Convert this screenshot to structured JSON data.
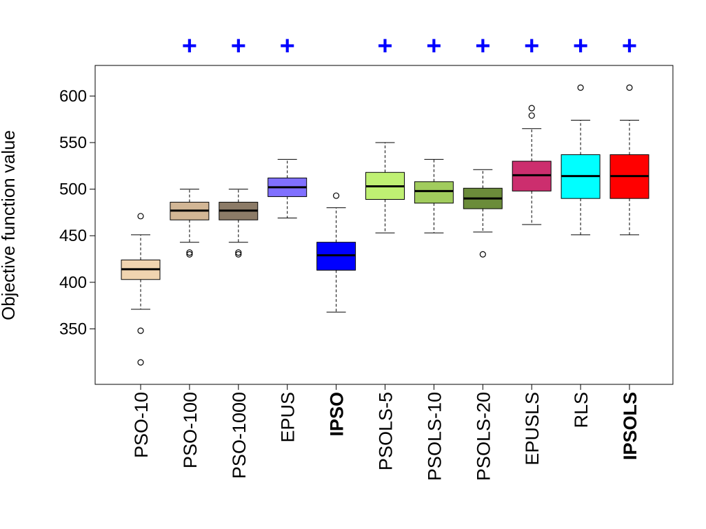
{
  "chart_data": {
    "type": "boxplot",
    "title": "",
    "xlabel": "",
    "ylabel": "Objective function value",
    "ylim": [
      303,
      621
    ],
    "yticks": [
      350,
      400,
      450,
      500,
      550,
      600
    ],
    "ytick_labels": [
      "350",
      "400",
      "450",
      "500",
      "550",
      "600"
    ],
    "grid": false,
    "marker_symbol": "+",
    "marker_color": "#0000ff",
    "median_color": "#000000",
    "whisker_color": "#000000",
    "categories": [
      {
        "label": "PSO-10",
        "bold": false,
        "color": "#f0d4b0",
        "min": 371,
        "q1": 403,
        "median": 414,
        "q3": 424,
        "max": 451,
        "outliers": [
          348,
          471,
          314
        ],
        "marker": false
      },
      {
        "label": "PSO-100",
        "bold": false,
        "color": "#d2b695",
        "min": 443,
        "q1": 467,
        "median": 477,
        "q3": 486,
        "max": 500,
        "outliers": [
          430,
          432
        ],
        "marker": true
      },
      {
        "label": "PSO-1000",
        "bold": false,
        "color": "#8c7b67",
        "min": 443,
        "q1": 467,
        "median": 477,
        "q3": 486,
        "max": 500,
        "outliers": [
          430,
          432
        ],
        "marker": true
      },
      {
        "label": "EPUS",
        "bold": false,
        "color": "#8070ff",
        "min": 469,
        "q1": 492,
        "median": 502,
        "q3": 512,
        "max": 532,
        "outliers": [],
        "marker": true
      },
      {
        "label": "IPSO",
        "bold": true,
        "color": "#0000ff",
        "min": 368,
        "q1": 413,
        "median": 429,
        "q3": 443,
        "max": 480,
        "outliers": [
          493
        ],
        "marker": false
      },
      {
        "label": "PSOLS-5",
        "bold": false,
        "color": "#bff073",
        "min": 453,
        "q1": 489,
        "median": 503,
        "q3": 518,
        "max": 550,
        "outliers": [],
        "marker": true
      },
      {
        "label": "PSOLS-10",
        "bold": false,
        "color": "#a1cc5d",
        "min": 453,
        "q1": 485,
        "median": 498,
        "q3": 508,
        "max": 532,
        "outliers": [],
        "marker": true
      },
      {
        "label": "PSOLS-20",
        "bold": false,
        "color": "#6b8c3a",
        "min": 454,
        "q1": 479,
        "median": 490,
        "q3": 501,
        "max": 521,
        "outliers": [
          430
        ],
        "marker": true
      },
      {
        "label": "EPUSLS",
        "bold": false,
        "color": "#cc2e6e",
        "min": 462,
        "q1": 498,
        "median": 515,
        "q3": 530,
        "max": 565,
        "outliers": [
          579,
          587
        ],
        "marker": true
      },
      {
        "label": "RLS",
        "bold": false,
        "color": "#00ffff",
        "min": 451,
        "q1": 490,
        "median": 514,
        "q3": 537,
        "max": 574,
        "outliers": [
          609
        ],
        "marker": true
      },
      {
        "label": "IPSOLS",
        "bold": true,
        "color": "#ff0000",
        "min": 451,
        "q1": 490,
        "median": 514,
        "q3": 537,
        "max": 574,
        "outliers": [
          609
        ],
        "marker": true
      }
    ]
  }
}
